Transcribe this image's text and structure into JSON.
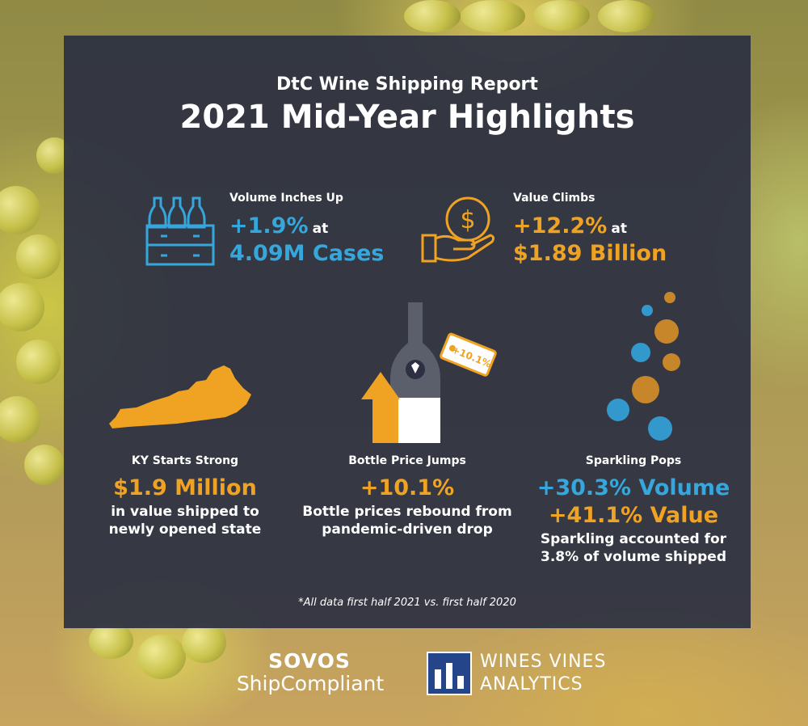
{
  "header": {
    "subtitle": "DtC Wine Shipping Report",
    "title": "2021 Mid-Year Highlights"
  },
  "volume": {
    "label": "Volume Inches Up",
    "stat": "+1.9%",
    "at": "at",
    "value": "4.09M Cases",
    "icon": "wine-crate-icon"
  },
  "value_stat": {
    "label": "Value Climbs",
    "stat": "+12.2%",
    "at": "at",
    "value": "$1.89 Billion",
    "icon": "dollar-hand-icon"
  },
  "kentucky": {
    "label": "KY Starts Strong",
    "stat": "$1.9 Million",
    "line1": "in value shipped to",
    "line2": "newly opened state",
    "icon": "kentucky-map-icon"
  },
  "bottle": {
    "label": "Bottle Price Jumps",
    "stat": "+10.1%",
    "line1": "Bottle prices rebound from",
    "line2": "pandemic-driven drop",
    "tag": "+10.1%",
    "icon": "wine-bottle-price-tag-icon"
  },
  "sparkling": {
    "label": "Sparkling Pops",
    "stat1": "+30.3% Volume",
    "stat2": "+41.1% Value",
    "line1": "Sparkling accounted for",
    "line2": "3.8% of volume shipped",
    "icon": "bubbles-icon"
  },
  "footnote": "*All data first half 2021 vs. first half 2020",
  "logos": {
    "sovos": "SOVOS",
    "shipcompliant": "ShipCompliant",
    "wines_vines_1": "WINES VINES",
    "wines_vines_2": "ANALYTICS"
  },
  "colors": {
    "blue": "#35a7dc",
    "orange": "#f0a323",
    "panel": "#2c3042"
  }
}
